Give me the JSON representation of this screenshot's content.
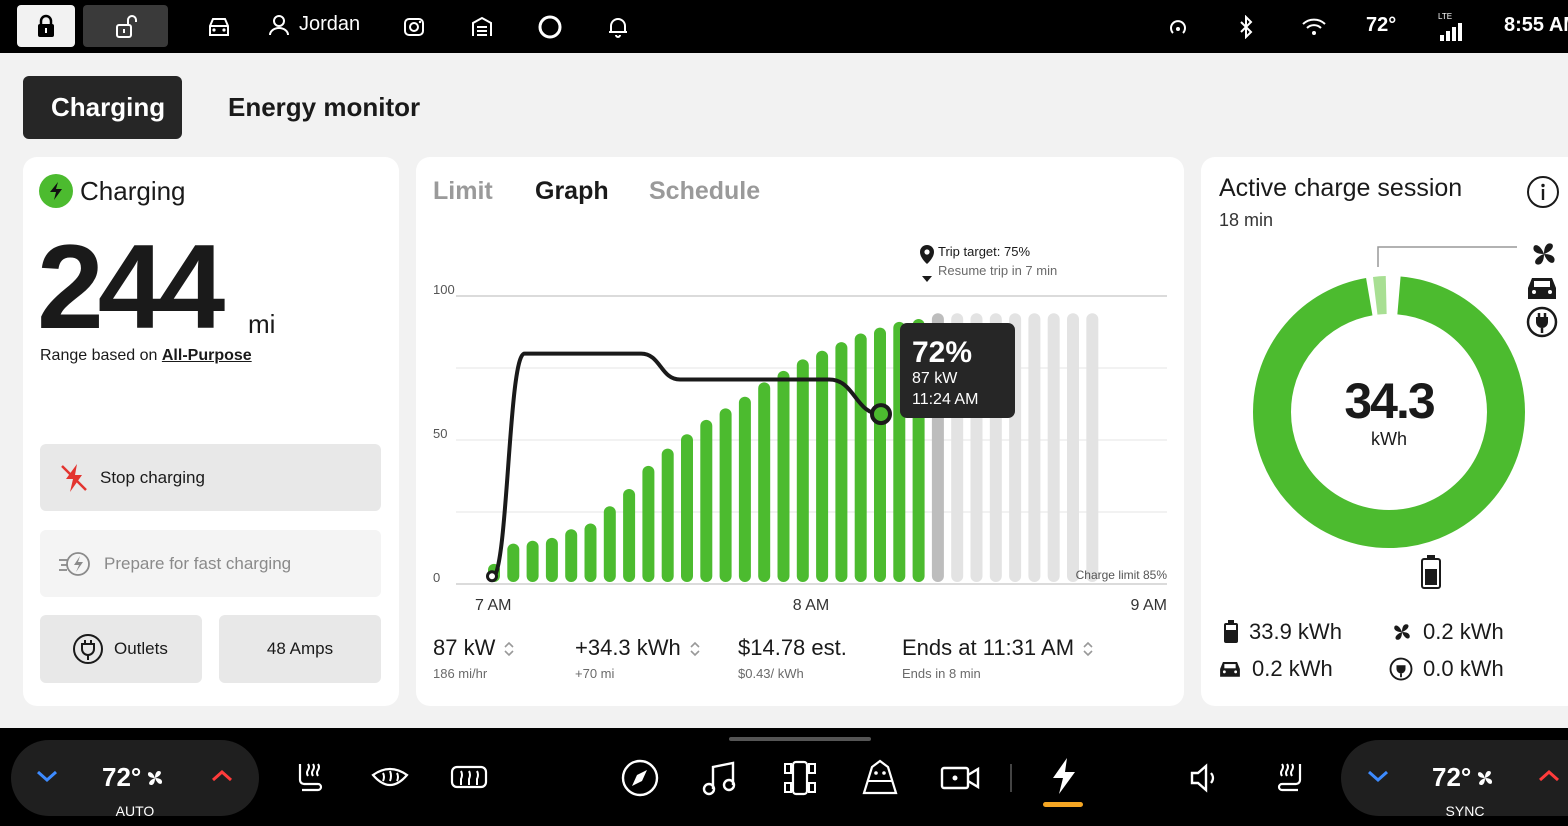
{
  "status_bar": {
    "user_name": "Jordan",
    "temperature": "72°",
    "network": "LTE",
    "time": "8:55 AM",
    "icons": [
      "lock-icon",
      "unlock-icon",
      "car-icon",
      "user-icon",
      "camera-icon",
      "garage-icon",
      "alexa-icon",
      "bell-icon",
      "hotspot-icon",
      "bluetooth-icon",
      "wifi-icon",
      "signal-icon"
    ]
  },
  "page_tabs": [
    "Charging",
    "Energy monitor"
  ],
  "charging_card": {
    "status": "Charging",
    "range_value": "244",
    "range_unit": "mi",
    "range_note_prefix": "Range based on ",
    "range_note_link": "All-Purpose",
    "stop_label": "Stop charging",
    "prepare_label": "Prepare for fast charging",
    "outlets_label": "Outlets",
    "amps_label": "48 Amps"
  },
  "graph_card": {
    "tabs": [
      "Limit",
      "Graph",
      "Schedule"
    ],
    "active_tab": "Graph",
    "trip_target": "Trip target: 75%",
    "trip_note": "Resume trip in 7 min",
    "charge_limit_label": "Charge limit 85%",
    "tooltip": {
      "percent": "72%",
      "power": "87 kW",
      "time": "11:24 AM"
    },
    "stats": [
      {
        "value": "87 kW",
        "sub": "186 mi/hr",
        "has_toggle": true
      },
      {
        "value": "+34.3 kWh",
        "sub": "+70 mi",
        "has_toggle": true
      },
      {
        "value": "$14.78 est.",
        "sub": "$0.43/ kWh",
        "has_toggle": false
      },
      {
        "value": "Ends at 11:31 AM",
        "sub": "Ends in 8 min",
        "has_toggle": true
      }
    ]
  },
  "chart_data": {
    "type": "bar",
    "x_tick_labels": [
      "7 AM",
      "8 AM",
      "9 AM"
    ],
    "y_ticks": [
      0,
      50,
      100
    ],
    "ylim": [
      0,
      100
    ],
    "bars_charged": [
      7,
      14,
      15,
      16,
      19,
      21,
      27,
      33,
      41,
      47,
      52,
      57,
      61,
      65,
      70,
      74,
      78,
      81,
      84,
      87,
      89,
      91,
      92
    ],
    "bars_remaining": [
      94,
      94,
      94,
      94,
      94,
      94,
      94,
      94,
      94
    ],
    "selected_bar_index": 23,
    "power_curve_kw": [
      {
        "t": 0.0,
        "v": 2
      },
      {
        "t": 0.05,
        "v": 80
      },
      {
        "t": 0.23,
        "v": 80
      },
      {
        "t": 0.29,
        "v": 71
      },
      {
        "t": 0.52,
        "v": 71
      },
      {
        "t": 0.6,
        "v": 59
      }
    ],
    "colors": {
      "charged": "#4cbb2f",
      "remaining": "#e3e3e3",
      "selected": "#bdbdbd",
      "curve": "#1a1a1a"
    }
  },
  "session_card": {
    "title": "Active charge session",
    "duration": "18 min",
    "total_value": "34.3",
    "total_unit": "kWh",
    "breakdown": [
      {
        "icon": "battery-icon",
        "value": "33.9 kWh"
      },
      {
        "icon": "fan-icon",
        "value": "0.2 kWh"
      },
      {
        "icon": "car-icon",
        "value": "0.2 kWh"
      },
      {
        "icon": "outlet-icon",
        "value": "0.0 kWh"
      }
    ],
    "donut": {
      "battery": 33.9,
      "climate": 0.2,
      "drive": 0.2,
      "outlets": 0.0
    }
  },
  "bottom_bar": {
    "left_temp": "72°",
    "left_mode": "AUTO",
    "right_temp": "72°",
    "right_mode": "SYNC",
    "accent": "#f5a623"
  }
}
